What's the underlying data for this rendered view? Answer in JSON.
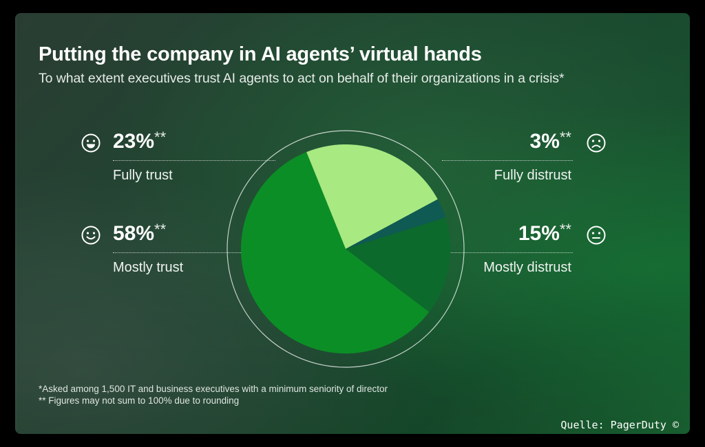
{
  "title": "Putting the company in AI agents’ virtual hands",
  "subtitle": "To what extent executives trust AI agents to act on behalf of their organizations in a crisis*",
  "stats": {
    "fully_trust": {
      "value": "23%",
      "stars": "**",
      "label": "Fully trust",
      "icon": "grinning-face-icon"
    },
    "mostly_trust": {
      "value": "58%",
      "stars": "**",
      "label": "Mostly trust",
      "icon": "smiling-face-icon"
    },
    "fully_distrust": {
      "value": "3%",
      "stars": "**",
      "label": "Fully distrust",
      "icon": "frowning-face-icon"
    },
    "mostly_distrust": {
      "value": "15%",
      "stars": "**",
      "label": "Mostly distrust",
      "icon": "neutral-face-icon"
    }
  },
  "chart_data": {
    "type": "pie",
    "categories": [
      "Fully trust",
      "Fully distrust",
      "Mostly distrust",
      "Mostly trust"
    ],
    "values": [
      23,
      3,
      15,
      58
    ],
    "colors": [
      "#a8e982",
      "#0f5a52",
      "#0c6a2c",
      "#0c8e26"
    ],
    "start_angle_deg": 338,
    "title": "Putting the company in AI agents’ virtual hands"
  },
  "footnotes": {
    "note1": "*Asked among 1,500 IT and business executives with a minimum seniority of director",
    "note2": "** Figures may not sum to 100% due to rounding"
  },
  "credit": "Quelle: PagerDuty ©"
}
